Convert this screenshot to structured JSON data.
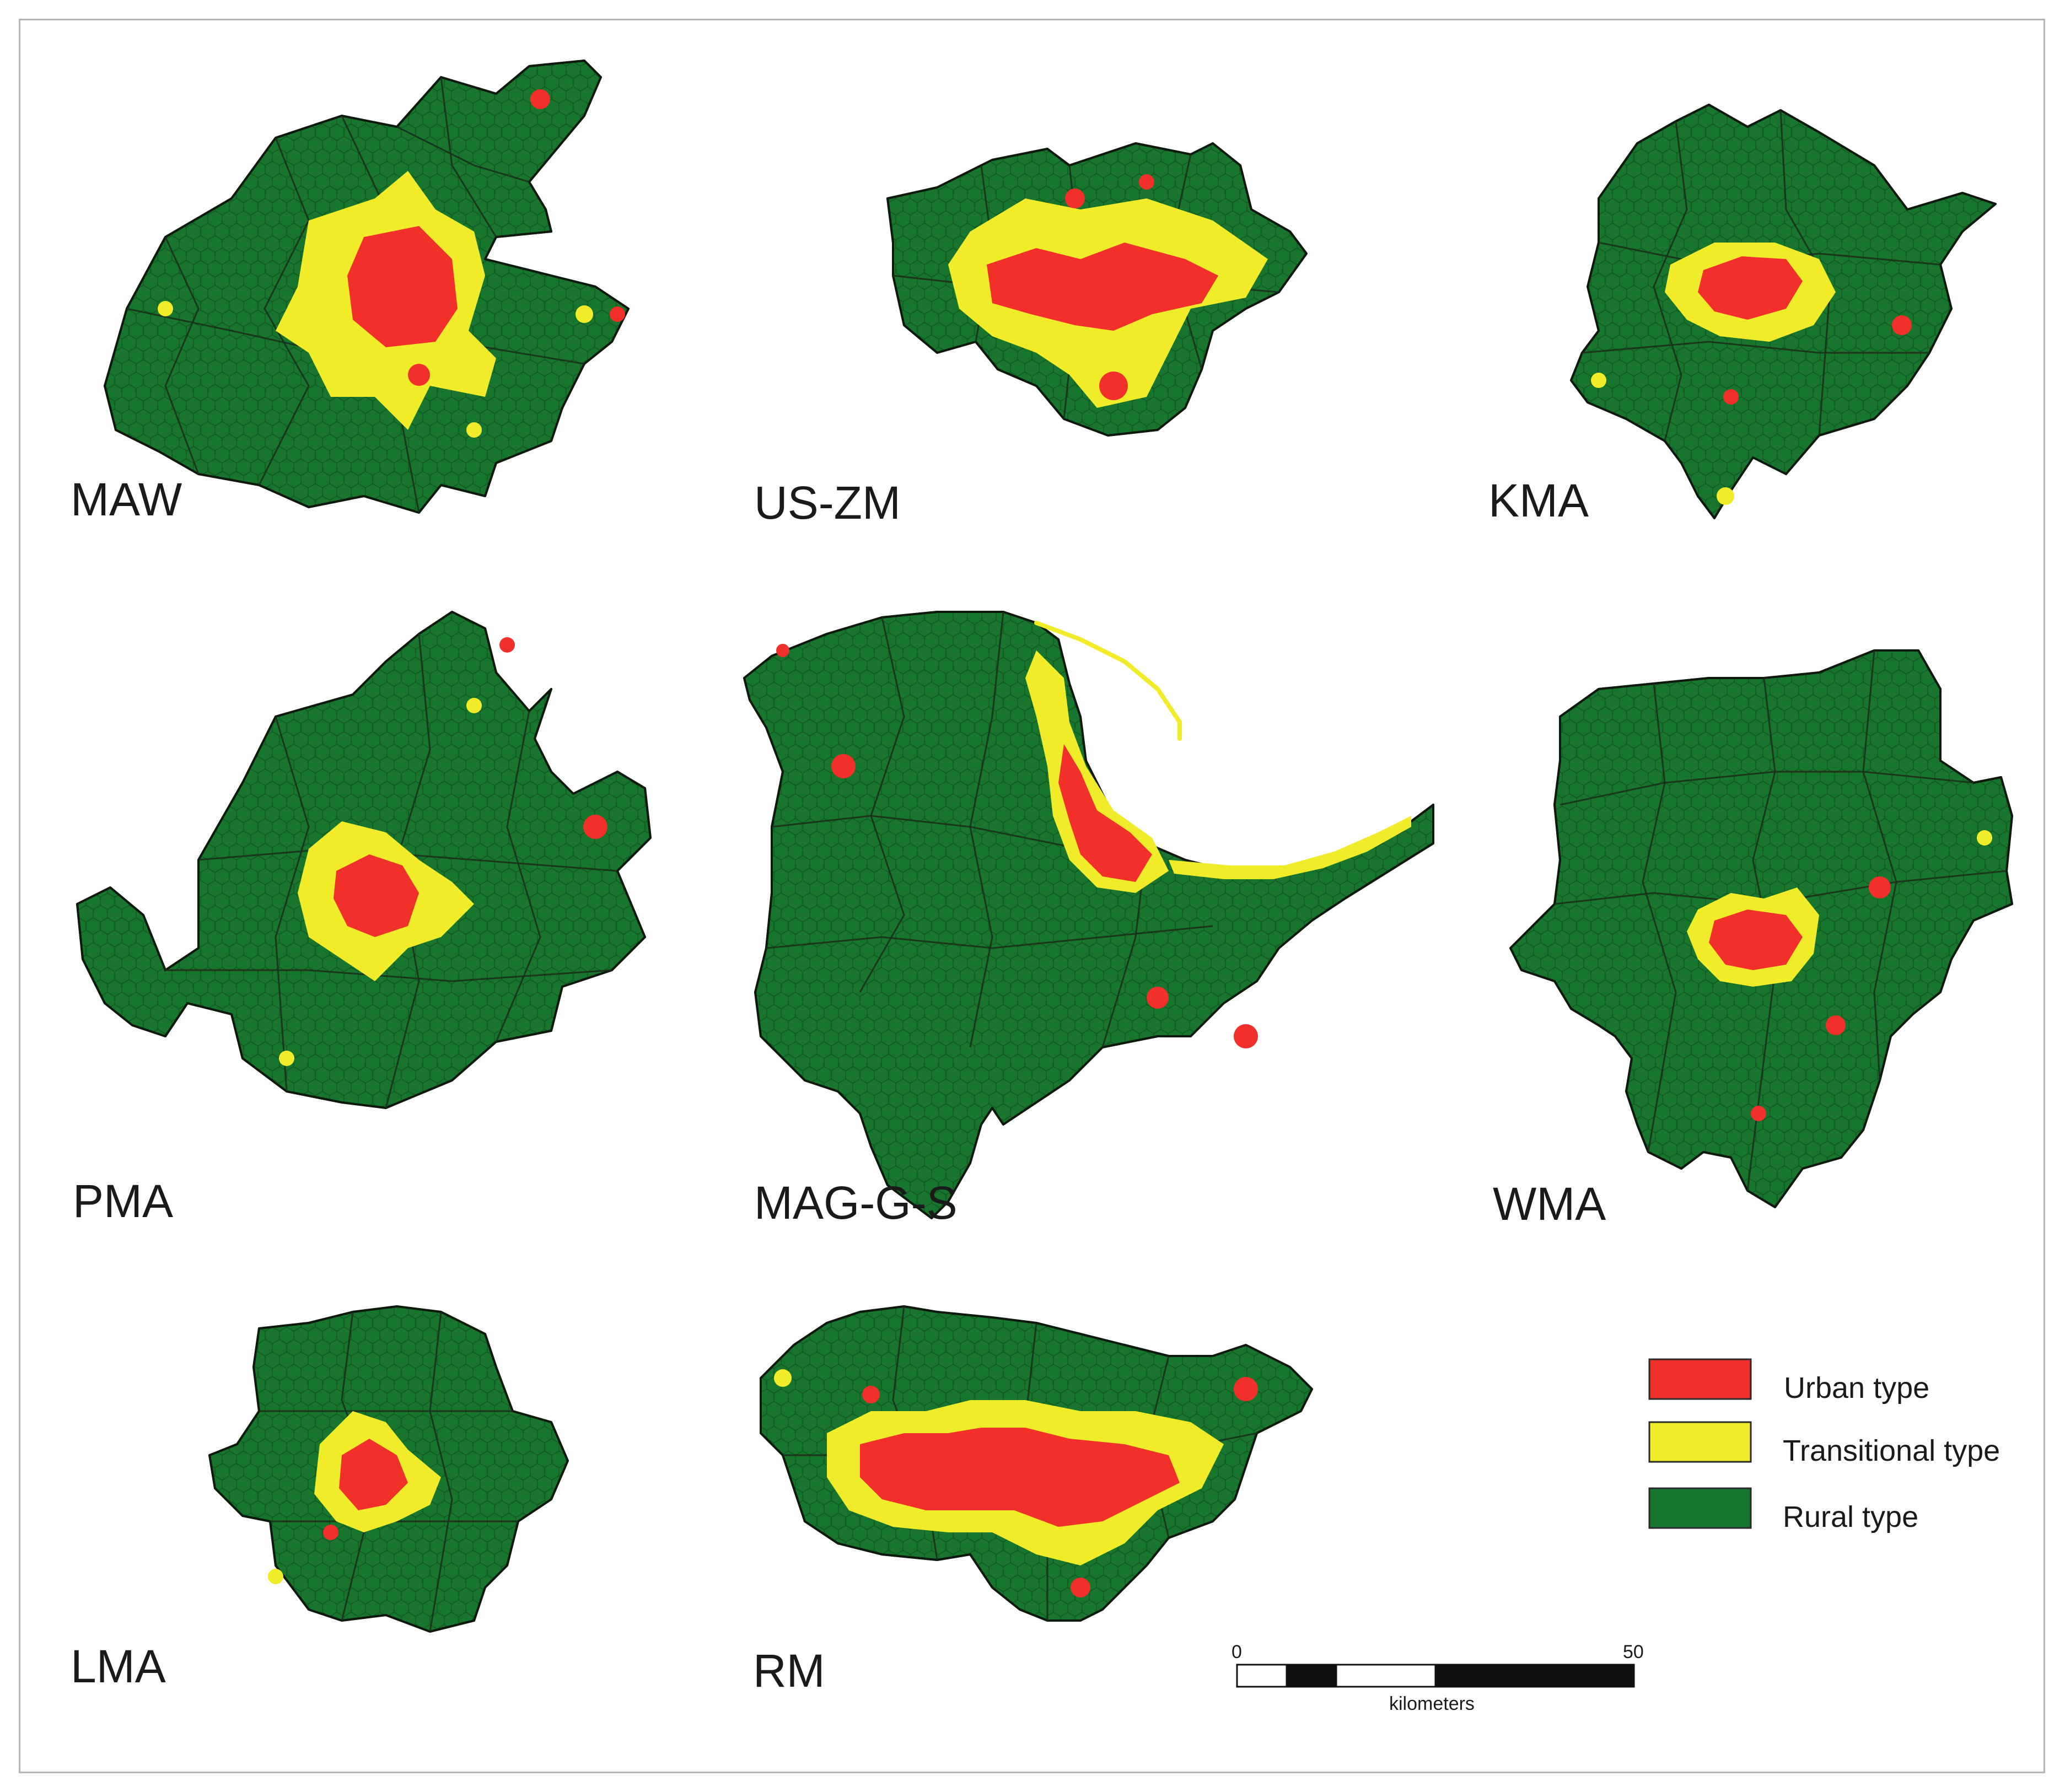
{
  "colors": {
    "urban": "#f2302b",
    "transitional": "#f0ec2a",
    "rural": "#17752d",
    "border": "#0f1a0f"
  },
  "regions": [
    {
      "id": "maw",
      "label": "MAW"
    },
    {
      "id": "us-zm",
      "label": "US-ZM"
    },
    {
      "id": "kma",
      "label": "KMA"
    },
    {
      "id": "pma",
      "label": "PMA"
    },
    {
      "id": "mag-g-s",
      "label": "MAG-G-S"
    },
    {
      "id": "wma",
      "label": "WMA"
    },
    {
      "id": "lma",
      "label": "LMA"
    },
    {
      "id": "rm",
      "label": "RM"
    }
  ],
  "legend": {
    "items": [
      {
        "label": "Urban type",
        "color_key": "urban"
      },
      {
        "label": "Transitional type",
        "color_key": "transitional"
      },
      {
        "label": "Rural type",
        "color_key": "rural"
      }
    ]
  },
  "scale_bar": {
    "start_label": "0",
    "end_label": "50",
    "unit_label": "kilometers"
  }
}
